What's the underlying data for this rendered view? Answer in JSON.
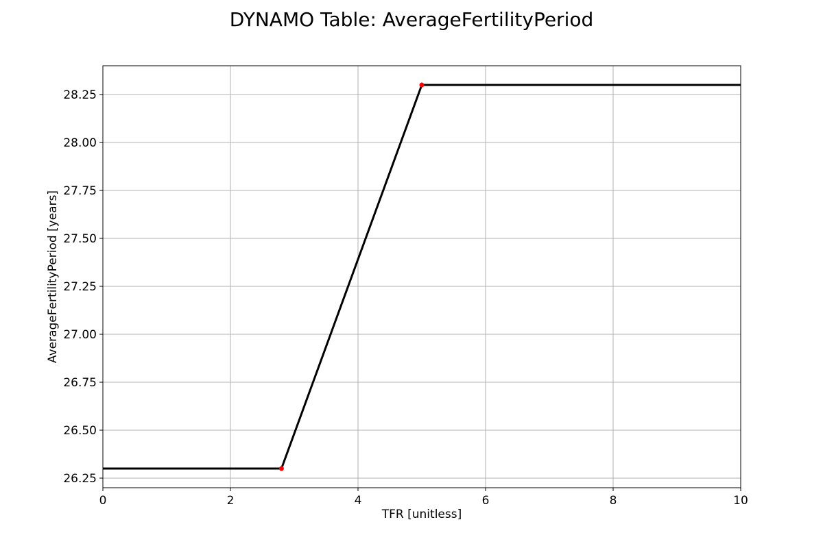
{
  "chart_data": {
    "type": "line",
    "title": "DYNAMO Table: AverageFertilityPeriod",
    "xlabel": "TFR [unitless]",
    "ylabel": "AverageFertilityPeriod [years]",
    "xlim": [
      0,
      10
    ],
    "ylim": [
      26.2,
      28.4
    ],
    "grid": true,
    "x_ticks": [
      "0",
      "2",
      "4",
      "6",
      "8",
      "10"
    ],
    "y_ticks": [
      "26.25",
      "26.50",
      "26.75",
      "27.00",
      "27.25",
      "27.50",
      "27.75",
      "28.00",
      "28.25"
    ],
    "series": [
      {
        "x": [
          0,
          2.8,
          5,
          10
        ],
        "y": [
          26.3,
          26.3,
          28.3,
          28.3
        ],
        "color": "#000000"
      }
    ],
    "points": {
      "x": [
        2.8,
        5
      ],
      "y": [
        26.3,
        28.3
      ],
      "color": "#ff0000"
    }
  }
}
